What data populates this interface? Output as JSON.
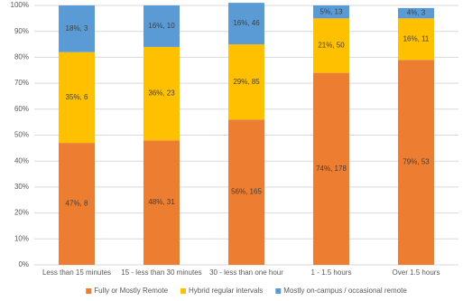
{
  "chart_data": {
    "type": "stacked_bar",
    "categories": [
      "Less than 15 minutes",
      "15 - less than 30 minutes",
      "30 - less than one hour",
      "1 - 1.5 hours",
      "Over 1.5 hours"
    ],
    "series": [
      {
        "name": "Fully or Mostly Remote",
        "color": "#ed7d31",
        "values": [
          47,
          48,
          56,
          74,
          79
        ],
        "value_labels": [
          "47%, 8",
          "48%, 31",
          "56%, 165",
          "74%, 178",
          "79%, 53"
        ]
      },
      {
        "name": "Hybrid regular intervals",
        "color": "#ffc000",
        "values": [
          35,
          36,
          29,
          21,
          16
        ],
        "value_labels": [
          "35%, 6",
          "36%, 23",
          "29%, 85",
          "21%, 50",
          "16%, 11"
        ]
      },
      {
        "name": "Mostly on-campus / occasional remote",
        "color": "#5b9bd5",
        "values": [
          18,
          16,
          16,
          5,
          4
        ],
        "value_labels": [
          "18%, 3",
          "16%, 10",
          "16%, 46",
          "5%, 13",
          "4%, 3"
        ]
      }
    ],
    "ylim": [
      0,
      100
    ],
    "yticks": [
      {
        "value": 0,
        "label": "0%"
      },
      {
        "value": 10,
        "label": "10%"
      },
      {
        "value": 20,
        "label": "20%"
      },
      {
        "value": 30,
        "label": "30%"
      },
      {
        "value": 40,
        "label": "40%"
      },
      {
        "value": 50,
        "label": "50%"
      },
      {
        "value": 60,
        "label": "60%"
      },
      {
        "value": 70,
        "label": "70%"
      },
      {
        "value": 80,
        "label": "80%"
      },
      {
        "value": 90,
        "label": "90%"
      },
      {
        "value": 100,
        "label": "100%"
      }
    ],
    "grid": true,
    "legend": "bottom"
  }
}
